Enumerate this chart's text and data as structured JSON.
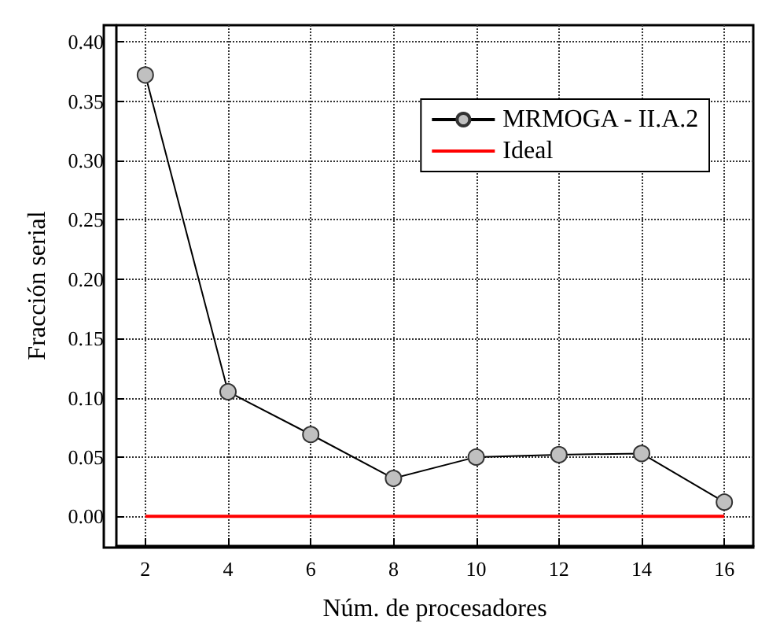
{
  "chart_data": {
    "type": "line",
    "xlabel": "Núm. de procesadores",
    "ylabel": "Fracción serial",
    "x": [
      2,
      4,
      6,
      8,
      10,
      12,
      14,
      16
    ],
    "series": [
      {
        "name": "MRMOGA - II.A.2",
        "color": "#000000",
        "values": [
          0.372,
          0.105,
          0.069,
          0.032,
          0.05,
          0.052,
          0.053,
          0.012
        ],
        "marker": "circle"
      },
      {
        "name": "Ideal",
        "color": "#ff0000",
        "x": [
          2,
          16
        ],
        "values": [
          0,
          0
        ],
        "marker": "none"
      }
    ],
    "xlim": [
      1.3,
      16.7
    ],
    "xticks": [
      2,
      4,
      6,
      8,
      10,
      12,
      14,
      16
    ],
    "ylim": [
      -0.025,
      0.414
    ],
    "yticks": [
      {
        "value": 0,
        "label": "0.00"
      },
      {
        "value": 0.05,
        "label": "0.05"
      },
      {
        "value": 0.1,
        "label": "0.10"
      },
      {
        "value": 0.15,
        "label": "0.15"
      },
      {
        "value": 0.2,
        "label": "0.20"
      },
      {
        "value": 0.25,
        "label": "0.25"
      },
      {
        "value": 0.3,
        "label": "0.30"
      },
      {
        "value": 0.35,
        "label": "0.35"
      },
      {
        "value": 0.4,
        "label": "0.40"
      }
    ],
    "grid": true,
    "legend": "top right",
    "line_style": "solid"
  }
}
